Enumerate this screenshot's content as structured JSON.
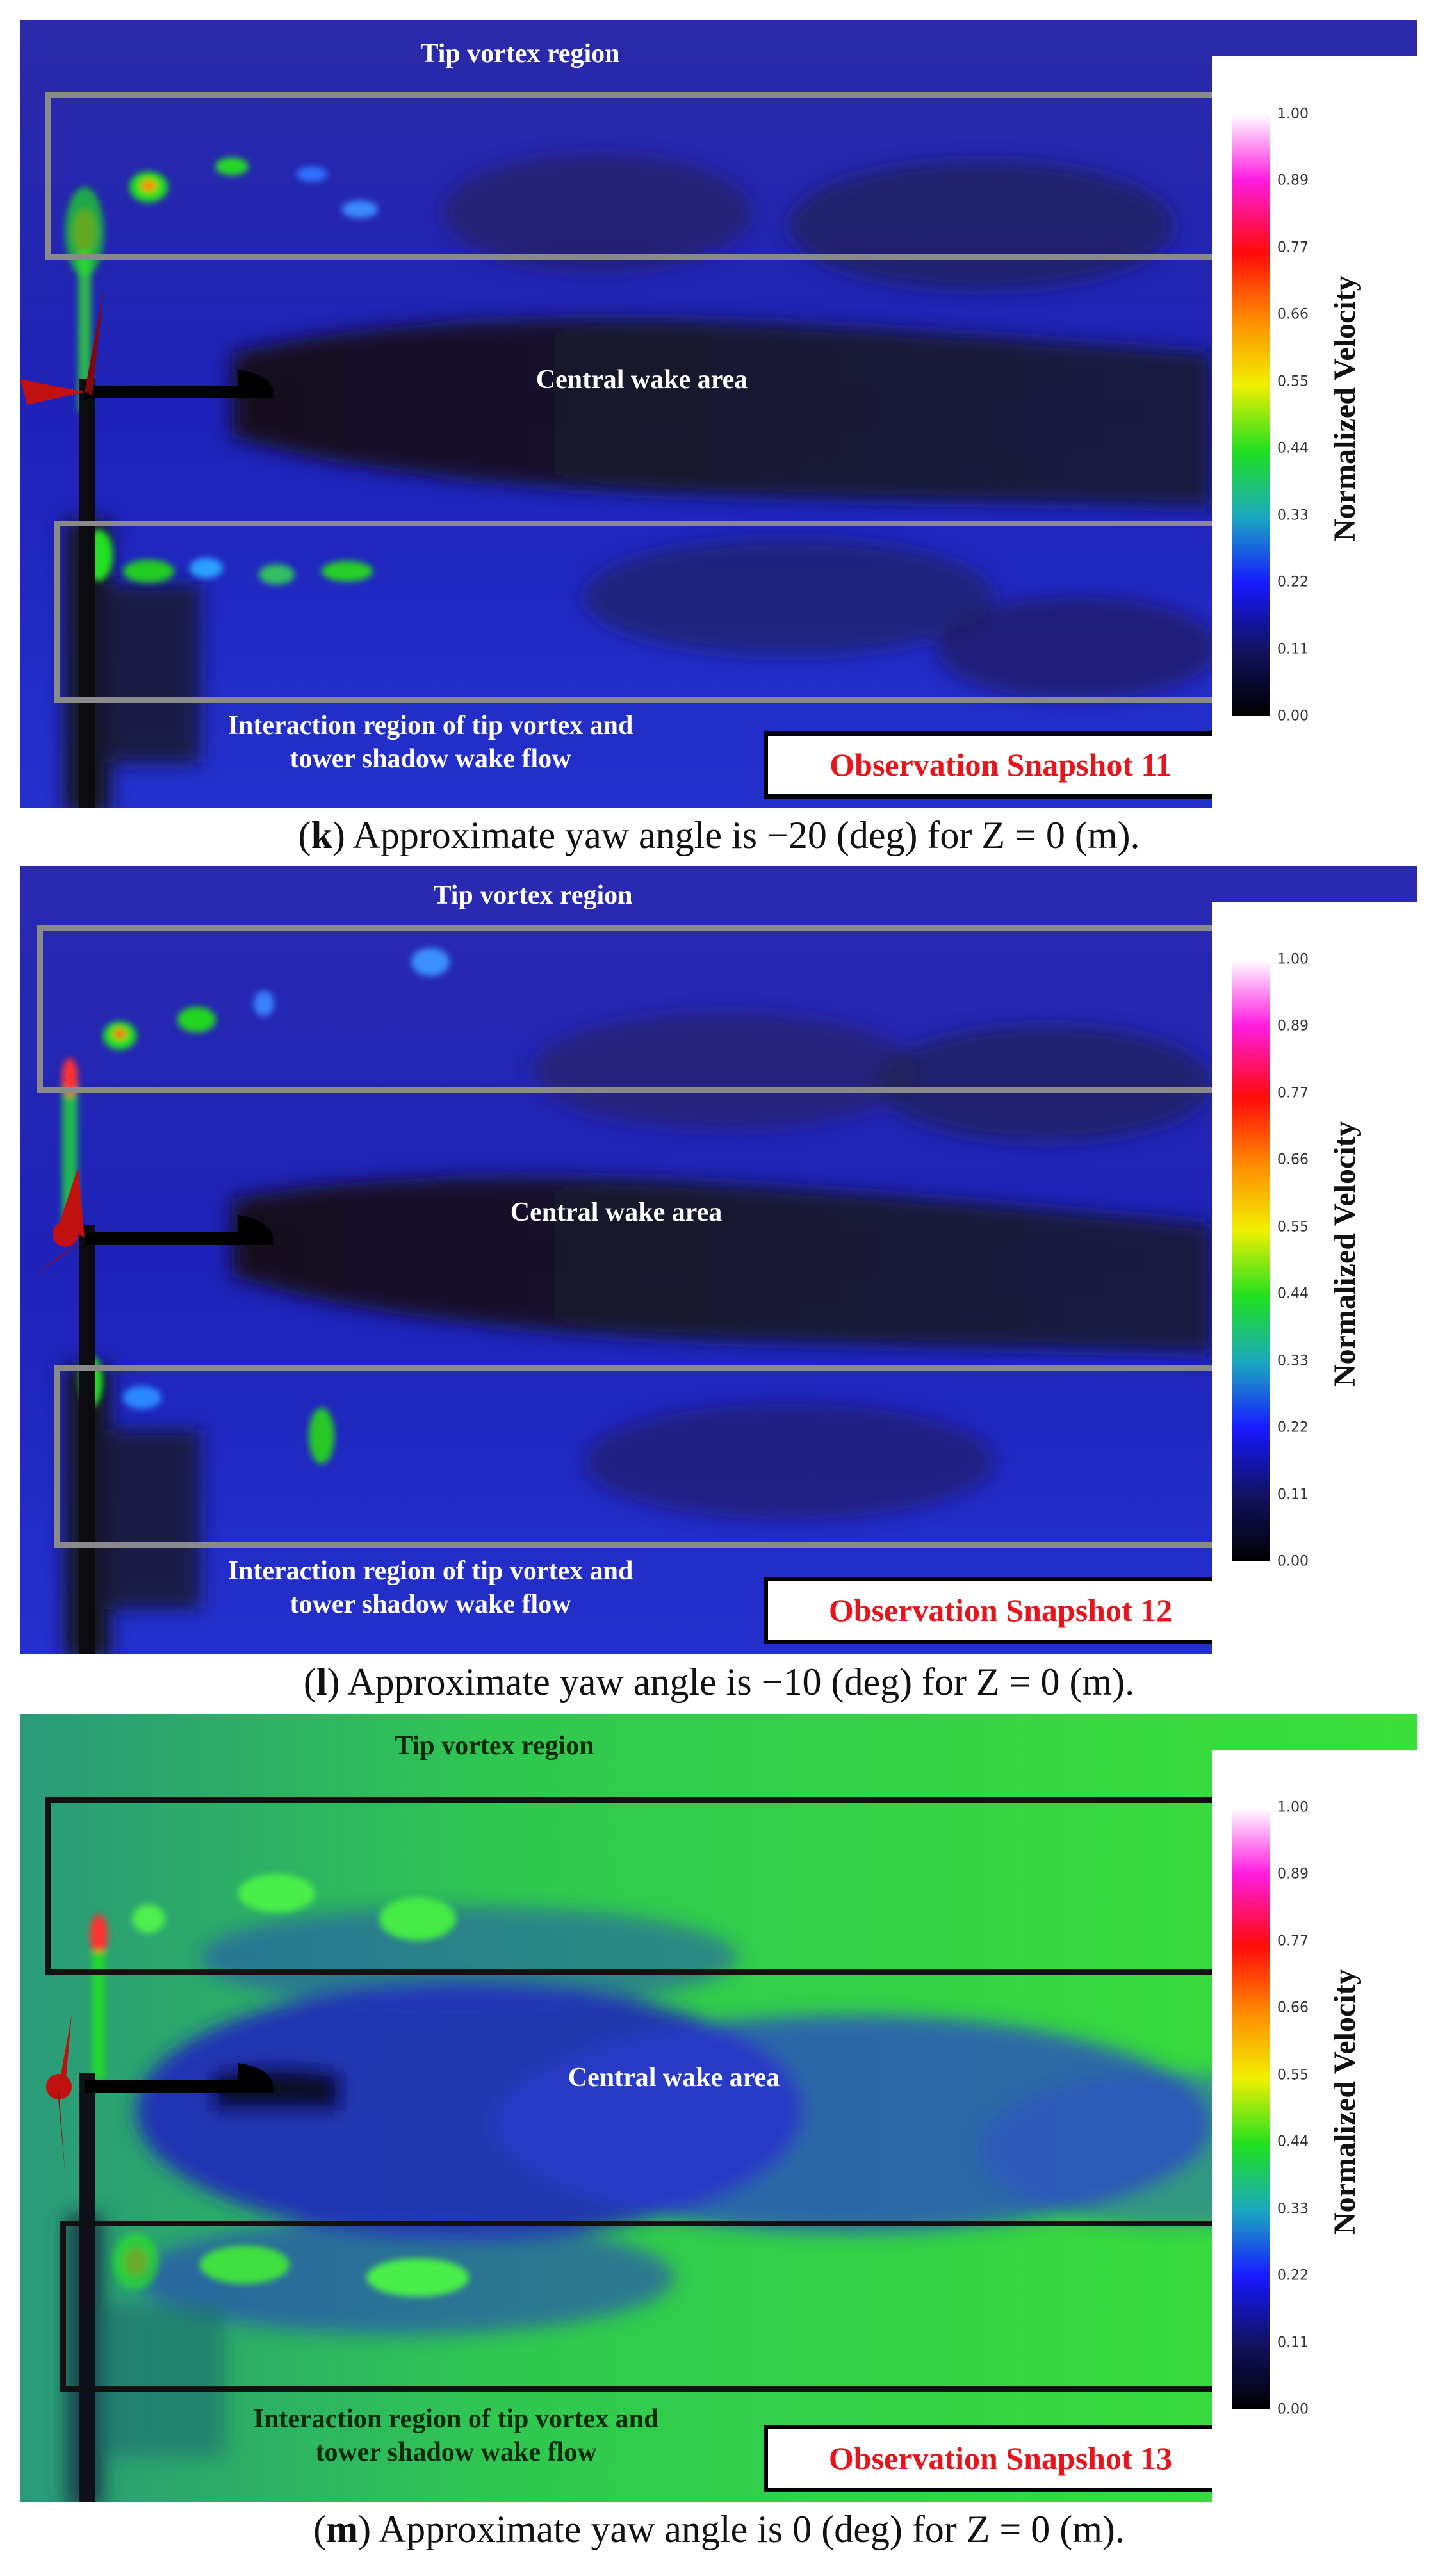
{
  "colorbar": {
    "title": "Normalized Velocity",
    "ticks": [
      "1.00",
      "0.89",
      "0.77",
      "0.66",
      "0.55",
      "0.44",
      "0.33",
      "0.22",
      "0.11",
      "0.00"
    ]
  },
  "panels": [
    {
      "tip_label": "Tip vortex region",
      "center_label": "Central wake area",
      "interaction_label_1": "Interaction region of tip vortex and",
      "interaction_label_2": "tower shadow wake flow",
      "snapshot": "Observation Snapshot 11",
      "caption_letter": "k",
      "caption_text": "Approximate yaw angle is −20 (deg) for Z = 0 (m)."
    },
    {
      "tip_label": "Tip vortex region",
      "center_label": "Central wake area",
      "interaction_label_1": "Interaction region of tip vortex and",
      "interaction_label_2": "tower shadow wake flow",
      "snapshot": "Observation Snapshot 12",
      "caption_letter": "l",
      "caption_text": "Approximate yaw angle is −10 (deg) for Z = 0 (m)."
    },
    {
      "tip_label": "Tip vortex region",
      "center_label": "Central wake area",
      "interaction_label_1": "Interaction region of tip vortex and",
      "interaction_label_2": "tower shadow wake flow",
      "snapshot": "Observation Snapshot 13",
      "caption_letter": "m",
      "caption_text": "Approximate yaw angle is 0 (deg) for Z = 0 (m)."
    }
  ]
}
